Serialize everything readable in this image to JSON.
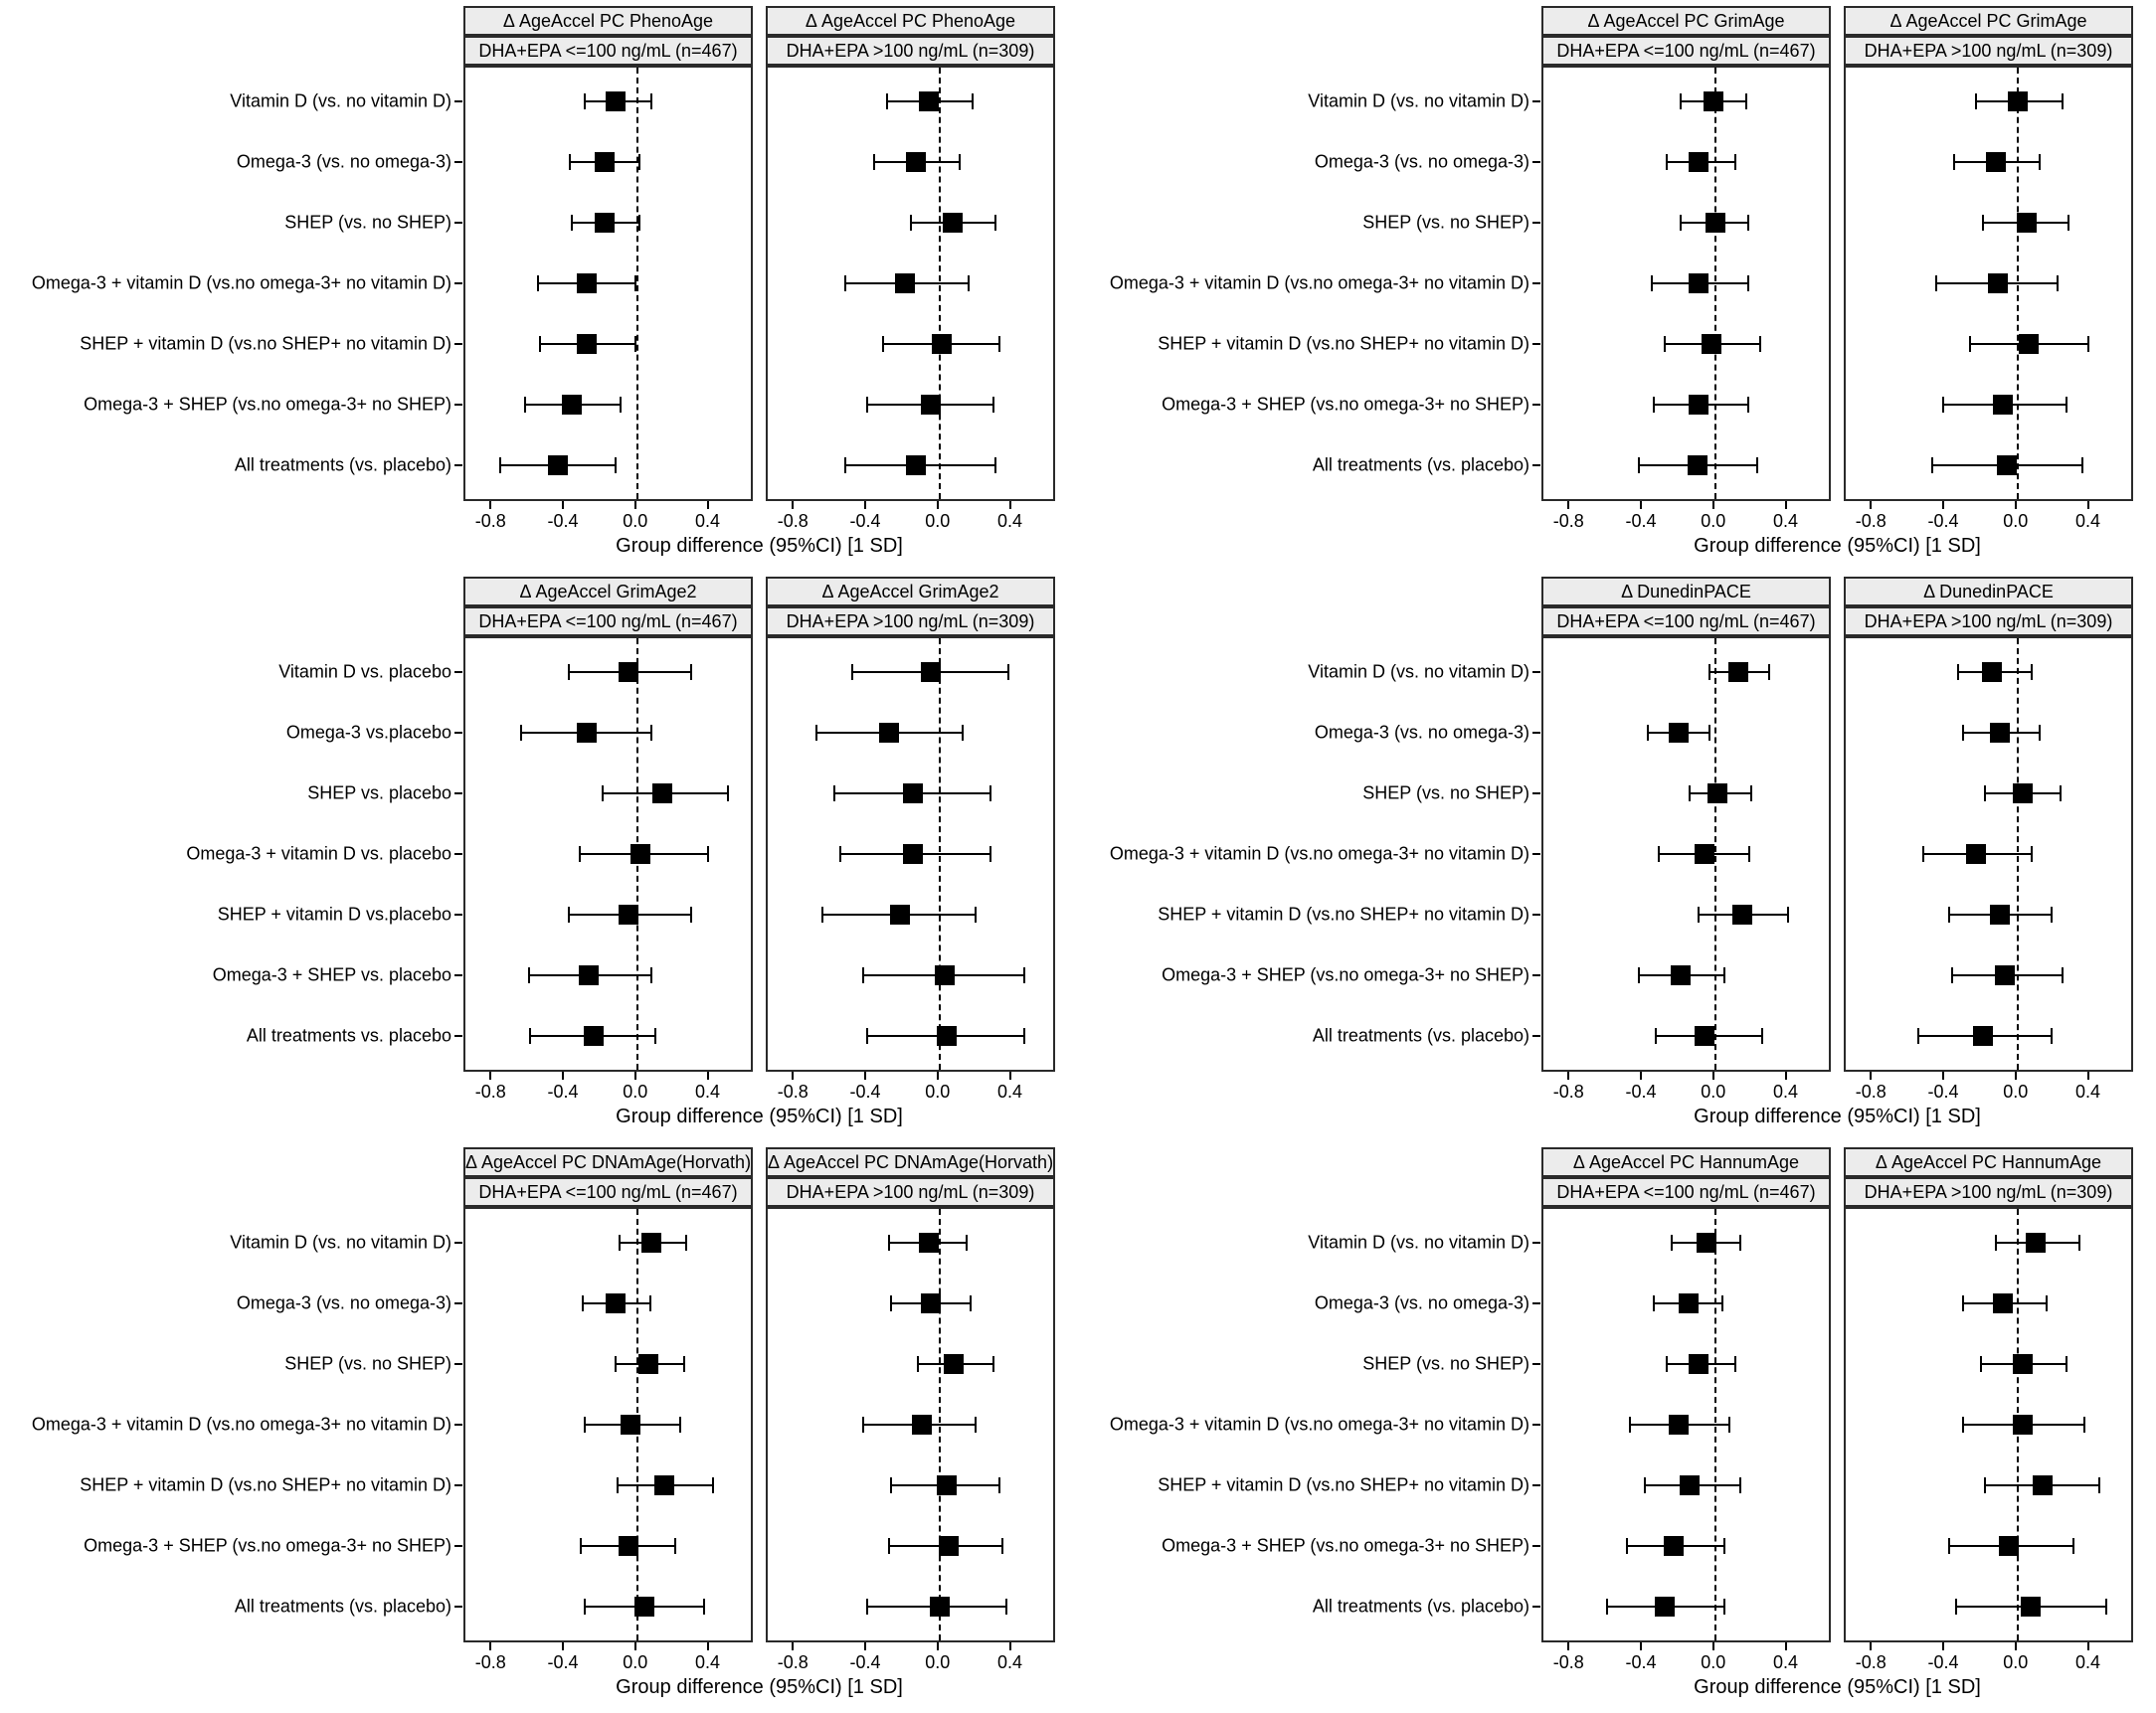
{
  "figure": {
    "xlabel": "Group difference (95%CI) [1 SD]",
    "xlim": [
      -0.95,
      0.65
    ],
    "xticks": [
      -0.8,
      -0.4,
      0.0,
      0.4
    ],
    "xtick_labels": [
      "-0.8",
      "-0.4",
      "0.0",
      "0.4"
    ],
    "facets": [
      "DHA+EPA <=100 ng/mL (n=467)",
      "DHA+EPA >100 ng/mL (n=309)"
    ],
    "zero_reference": 0.0,
    "colors": {
      "marker": "#000000",
      "error_bar": "#000000",
      "header_bg": "#ececec",
      "panel_border": "#2a2a2a",
      "text": "#000000",
      "background": "#ffffff"
    }
  },
  "chart_data": [
    {
      "type": "scatter",
      "subtype": "forest",
      "title": "Δ AgeAccel PC PhenoAge",
      "row": 0,
      "col": 0,
      "xlabel": "Group difference (95%CI) [1 SD]",
      "xlim": [
        -0.95,
        0.65
      ],
      "categories": [
        "Vitamin D (vs. no vitamin D)",
        "Omega-3 (vs. no omega-3)",
        "SHEP (vs. no SHEP)",
        "Omega-3 + vitamin D (vs.no omega-3+ no vitamin D)",
        "SHEP + vitamin D (vs.no SHEP+ no vitamin D)",
        "Omega-3 + SHEP (vs.no omega-3+ no SHEP)",
        "All treatments (vs. placebo)"
      ],
      "series": [
        {
          "name": "DHA+EPA <=100 ng/mL (n=467)",
          "values": [
            {
              "est": -0.12,
              "lo": -0.29,
              "hi": 0.08
            },
            {
              "est": -0.18,
              "lo": -0.37,
              "hi": 0.01
            },
            {
              "est": -0.18,
              "lo": -0.36,
              "hi": 0.01
            },
            {
              "est": -0.28,
              "lo": -0.55,
              "hi": -0.01
            },
            {
              "est": -0.28,
              "lo": -0.54,
              "hi": -0.01
            },
            {
              "est": -0.36,
              "lo": -0.62,
              "hi": -0.09
            },
            {
              "est": -0.44,
              "lo": -0.76,
              "hi": -0.12
            }
          ]
        },
        {
          "name": "DHA+EPA >100 ng/mL (n=309)",
          "values": [
            {
              "est": -0.06,
              "lo": -0.29,
              "hi": 0.18
            },
            {
              "est": -0.13,
              "lo": -0.36,
              "hi": 0.11
            },
            {
              "est": 0.07,
              "lo": -0.16,
              "hi": 0.31
            },
            {
              "est": -0.19,
              "lo": -0.52,
              "hi": 0.16
            },
            {
              "est": 0.01,
              "lo": -0.31,
              "hi": 0.33
            },
            {
              "est": -0.05,
              "lo": -0.4,
              "hi": 0.3
            },
            {
              "est": -0.13,
              "lo": -0.52,
              "hi": 0.31
            }
          ]
        }
      ]
    },
    {
      "type": "scatter",
      "subtype": "forest",
      "title": "Δ AgeAccel PC GrimAge",
      "row": 0,
      "col": 1,
      "xlabel": "Group difference (95%CI) [1 SD]",
      "xlim": [
        -0.95,
        0.65
      ],
      "categories": [
        "Vitamin D (vs. no vitamin D)",
        "Omega-3 (vs. no omega-3)",
        "SHEP (vs. no SHEP)",
        "Omega-3 + vitamin D (vs.no omega-3+ no vitamin D)",
        "SHEP + vitamin D (vs.no SHEP+ no vitamin D)",
        "Omega-3 + SHEP (vs.no omega-3+ no SHEP)",
        "All treatments (vs. placebo)"
      ],
      "series": [
        {
          "name": "DHA+EPA <=100 ng/mL (n=467)",
          "values": [
            {
              "est": -0.01,
              "lo": -0.19,
              "hi": 0.17
            },
            {
              "est": -0.09,
              "lo": -0.27,
              "hi": 0.11
            },
            {
              "est": 0.0,
              "lo": -0.19,
              "hi": 0.18
            },
            {
              "est": -0.09,
              "lo": -0.35,
              "hi": 0.18
            },
            {
              "est": -0.02,
              "lo": -0.28,
              "hi": 0.25
            },
            {
              "est": -0.09,
              "lo": -0.34,
              "hi": 0.18
            },
            {
              "est": -0.1,
              "lo": -0.42,
              "hi": 0.23
            }
          ]
        },
        {
          "name": "DHA+EPA >100 ng/mL (n=309)",
          "values": [
            {
              "est": 0.0,
              "lo": -0.23,
              "hi": 0.25
            },
            {
              "est": -0.12,
              "lo": -0.35,
              "hi": 0.12
            },
            {
              "est": 0.05,
              "lo": -0.19,
              "hi": 0.28
            },
            {
              "est": -0.11,
              "lo": -0.45,
              "hi": 0.22
            },
            {
              "est": 0.06,
              "lo": -0.26,
              "hi": 0.39
            },
            {
              "est": -0.08,
              "lo": -0.41,
              "hi": 0.27
            },
            {
              "est": -0.06,
              "lo": -0.47,
              "hi": 0.36
            }
          ]
        }
      ]
    },
    {
      "type": "scatter",
      "subtype": "forest",
      "title": "Δ AgeAccel GrimAge2",
      "row": 1,
      "col": 0,
      "xlabel": "Group difference (95%CI) [1 SD]",
      "xlim": [
        -0.95,
        0.65
      ],
      "categories": [
        "Vitamin D vs. placebo",
        "Omega-3 vs.placebo",
        "SHEP vs. placebo",
        "Omega-3 + vitamin D vs. placebo",
        "SHEP + vitamin D vs.placebo",
        "Omega-3 + SHEP vs. placebo",
        "All treatments vs. placebo"
      ],
      "series": [
        {
          "name": "DHA+EPA <=100 ng/mL (n=467)",
          "values": [
            {
              "est": -0.05,
              "lo": -0.38,
              "hi": 0.3
            },
            {
              "est": -0.28,
              "lo": -0.64,
              "hi": 0.08
            },
            {
              "est": 0.14,
              "lo": -0.19,
              "hi": 0.5
            },
            {
              "est": 0.02,
              "lo": -0.32,
              "hi": 0.39
            },
            {
              "est": -0.05,
              "lo": -0.38,
              "hi": 0.3
            },
            {
              "est": -0.27,
              "lo": -0.6,
              "hi": 0.08
            },
            {
              "est": -0.24,
              "lo": -0.59,
              "hi": 0.1
            }
          ]
        },
        {
          "name": "DHA+EPA >100 ng/mL (n=309)",
          "values": [
            {
              "est": -0.05,
              "lo": -0.48,
              "hi": 0.38
            },
            {
              "est": -0.28,
              "lo": -0.68,
              "hi": 0.13
            },
            {
              "est": -0.15,
              "lo": -0.58,
              "hi": 0.28
            },
            {
              "est": -0.15,
              "lo": -0.55,
              "hi": 0.28
            },
            {
              "est": -0.22,
              "lo": -0.65,
              "hi": 0.2
            },
            {
              "est": 0.03,
              "lo": -0.42,
              "hi": 0.47
            },
            {
              "est": 0.04,
              "lo": -0.4,
              "hi": 0.47
            }
          ]
        }
      ]
    },
    {
      "type": "scatter",
      "subtype": "forest",
      "title": "Δ DunedinPACE",
      "row": 1,
      "col": 1,
      "xlabel": "Group difference (95%CI) [1 SD]",
      "xlim": [
        -0.95,
        0.65
      ],
      "categories": [
        "Vitamin D (vs. no vitamin D)",
        "Omega-3 (vs. no omega-3)",
        "SHEP (vs. no SHEP)",
        "Omega-3 + vitamin D (vs.no omega-3+ no vitamin D)",
        "SHEP + vitamin D (vs.no SHEP+ no vitamin D)",
        "Omega-3 + SHEP (vs.no omega-3+ no SHEP)",
        "All treatments (vs. placebo)"
      ],
      "series": [
        {
          "name": "DHA+EPA <=100 ng/mL (n=467)",
          "values": [
            {
              "est": 0.13,
              "lo": -0.03,
              "hi": 0.3
            },
            {
              "est": -0.2,
              "lo": -0.37,
              "hi": -0.03
            },
            {
              "est": 0.01,
              "lo": -0.14,
              "hi": 0.2
            },
            {
              "est": -0.06,
              "lo": -0.31,
              "hi": 0.19
            },
            {
              "est": 0.15,
              "lo": -0.09,
              "hi": 0.4
            },
            {
              "est": -0.19,
              "lo": -0.42,
              "hi": 0.05
            },
            {
              "est": -0.06,
              "lo": -0.33,
              "hi": 0.26
            }
          ]
        },
        {
          "name": "DHA+EPA >100 ng/mL (n=309)",
          "values": [
            {
              "est": -0.14,
              "lo": -0.33,
              "hi": 0.08
            },
            {
              "est": -0.1,
              "lo": -0.3,
              "hi": 0.12
            },
            {
              "est": 0.03,
              "lo": -0.18,
              "hi": 0.24
            },
            {
              "est": -0.23,
              "lo": -0.52,
              "hi": 0.08
            },
            {
              "est": -0.1,
              "lo": -0.38,
              "hi": 0.19
            },
            {
              "est": -0.07,
              "lo": -0.36,
              "hi": 0.25
            },
            {
              "est": -0.19,
              "lo": -0.55,
              "hi": 0.19
            }
          ]
        }
      ]
    },
    {
      "type": "scatter",
      "subtype": "forest",
      "title": "Δ AgeAccel PC DNAmAge(Horvath)",
      "row": 2,
      "col": 0,
      "xlabel": "Group difference (95%CI) [1 SD]",
      "xlim": [
        -0.95,
        0.65
      ],
      "categories": [
        "Vitamin D (vs. no vitamin D)",
        "Omega-3 (vs. no omega-3)",
        "SHEP (vs. no SHEP)",
        "Omega-3 + vitamin D (vs.no omega-3+ no vitamin D)",
        "SHEP + vitamin D (vs.no SHEP+ no vitamin D)",
        "Omega-3 + SHEP (vs.no omega-3+ no SHEP)",
        "All treatments (vs. placebo)"
      ],
      "series": [
        {
          "name": "DHA+EPA <=100 ng/mL (n=467)",
          "values": [
            {
              "est": 0.08,
              "lo": -0.1,
              "hi": 0.27
            },
            {
              "est": -0.12,
              "lo": -0.3,
              "hi": 0.07
            },
            {
              "est": 0.06,
              "lo": -0.12,
              "hi": 0.26
            },
            {
              "est": -0.04,
              "lo": -0.29,
              "hi": 0.24
            },
            {
              "est": 0.15,
              "lo": -0.11,
              "hi": 0.42
            },
            {
              "est": -0.05,
              "lo": -0.31,
              "hi": 0.21
            },
            {
              "est": 0.04,
              "lo": -0.29,
              "hi": 0.37
            }
          ]
        },
        {
          "name": "DHA+EPA >100 ng/mL (n=309)",
          "values": [
            {
              "est": -0.06,
              "lo": -0.28,
              "hi": 0.15
            },
            {
              "est": -0.05,
              "lo": -0.27,
              "hi": 0.17
            },
            {
              "est": 0.08,
              "lo": -0.12,
              "hi": 0.3
            },
            {
              "est": -0.1,
              "lo": -0.42,
              "hi": 0.2
            },
            {
              "est": 0.04,
              "lo": -0.27,
              "hi": 0.33
            },
            {
              "est": 0.05,
              "lo": -0.28,
              "hi": 0.35
            },
            {
              "est": 0.0,
              "lo": -0.4,
              "hi": 0.37
            }
          ]
        }
      ]
    },
    {
      "type": "scatter",
      "subtype": "forest",
      "title": "Δ AgeAccel PC HannumAge",
      "row": 2,
      "col": 1,
      "xlabel": "Group difference (95%CI) [1 SD]",
      "xlim": [
        -0.95,
        0.65
      ],
      "categories": [
        "Vitamin D (vs. no vitamin D)",
        "Omega-3 (vs. no omega-3)",
        "SHEP (vs. no SHEP)",
        "Omega-3 + vitamin D (vs.no omega-3+ no vitamin D)",
        "SHEP + vitamin D (vs.no SHEP+ no vitamin D)",
        "Omega-3 + SHEP (vs.no omega-3+ no SHEP)",
        "All treatments (vs. placebo)"
      ],
      "series": [
        {
          "name": "DHA+EPA <=100 ng/mL (n=467)",
          "values": [
            {
              "est": -0.05,
              "lo": -0.24,
              "hi": 0.14
            },
            {
              "est": -0.15,
              "lo": -0.34,
              "hi": 0.04
            },
            {
              "est": -0.09,
              "lo": -0.27,
              "hi": 0.11
            },
            {
              "est": -0.2,
              "lo": -0.47,
              "hi": 0.08
            },
            {
              "est": -0.14,
              "lo": -0.39,
              "hi": 0.14
            },
            {
              "est": -0.23,
              "lo": -0.49,
              "hi": 0.05
            },
            {
              "est": -0.28,
              "lo": -0.6,
              "hi": 0.05
            }
          ]
        },
        {
          "name": "DHA+EPA >100 ng/mL (n=309)",
          "values": [
            {
              "est": 0.1,
              "lo": -0.12,
              "hi": 0.34
            },
            {
              "est": -0.08,
              "lo": -0.3,
              "hi": 0.16
            },
            {
              "est": 0.03,
              "lo": -0.2,
              "hi": 0.27
            },
            {
              "est": 0.03,
              "lo": -0.3,
              "hi": 0.37
            },
            {
              "est": 0.14,
              "lo": -0.18,
              "hi": 0.45
            },
            {
              "est": -0.05,
              "lo": -0.38,
              "hi": 0.31
            },
            {
              "est": 0.07,
              "lo": -0.34,
              "hi": 0.49
            }
          ]
        }
      ]
    }
  ]
}
